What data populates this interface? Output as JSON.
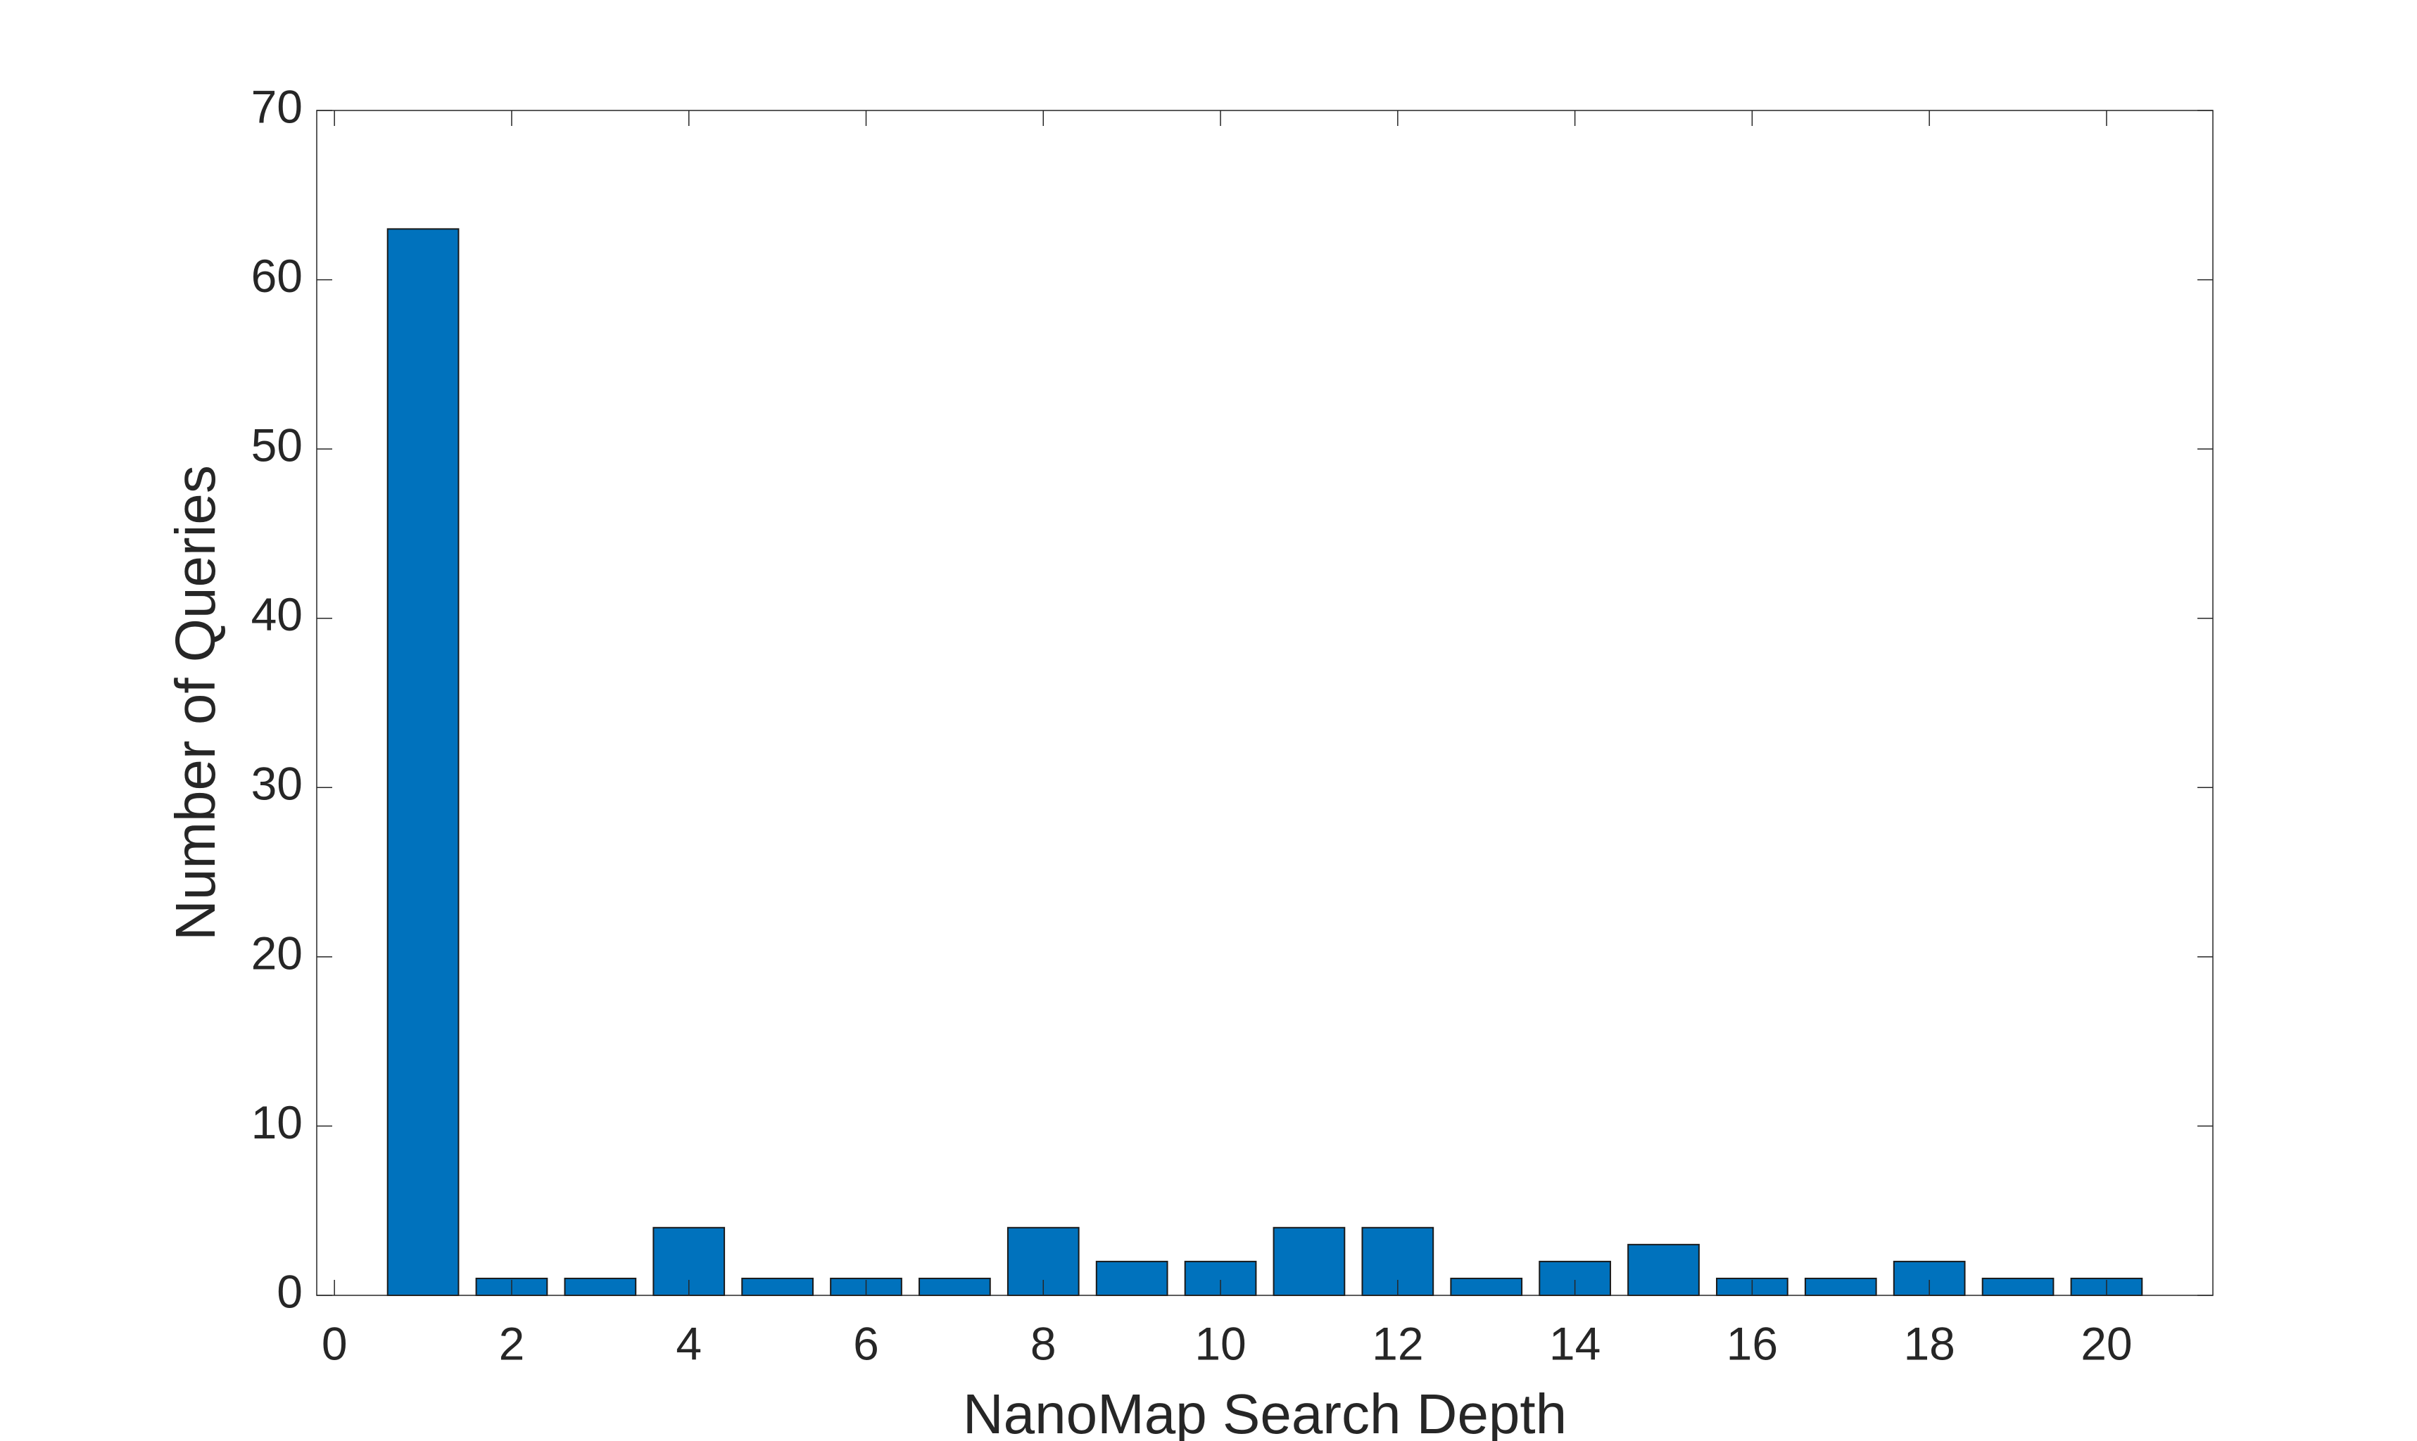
{
  "chart_data": {
    "type": "bar",
    "x_label": "NanoMap Search Depth",
    "y_label": "Number of Queries",
    "x": [
      1,
      2,
      3,
      4,
      5,
      6,
      7,
      8,
      9,
      10,
      11,
      12,
      13,
      14,
      15,
      16,
      17,
      18,
      19,
      20
    ],
    "values": [
      63,
      1,
      1,
      4,
      1,
      1,
      1,
      4,
      2,
      2,
      4,
      4,
      1,
      2,
      3,
      1,
      1,
      2,
      1,
      1
    ],
    "color": "#0072bd",
    "xlim": [
      -0.2,
      21.2
    ],
    "xticks": [
      0,
      2,
      4,
      6,
      8,
      10,
      12,
      14,
      16,
      18,
      20
    ],
    "ylim": [
      0,
      70
    ],
    "yticks": [
      0,
      10,
      20,
      30,
      40,
      50,
      60,
      70
    ],
    "grid": false
  }
}
